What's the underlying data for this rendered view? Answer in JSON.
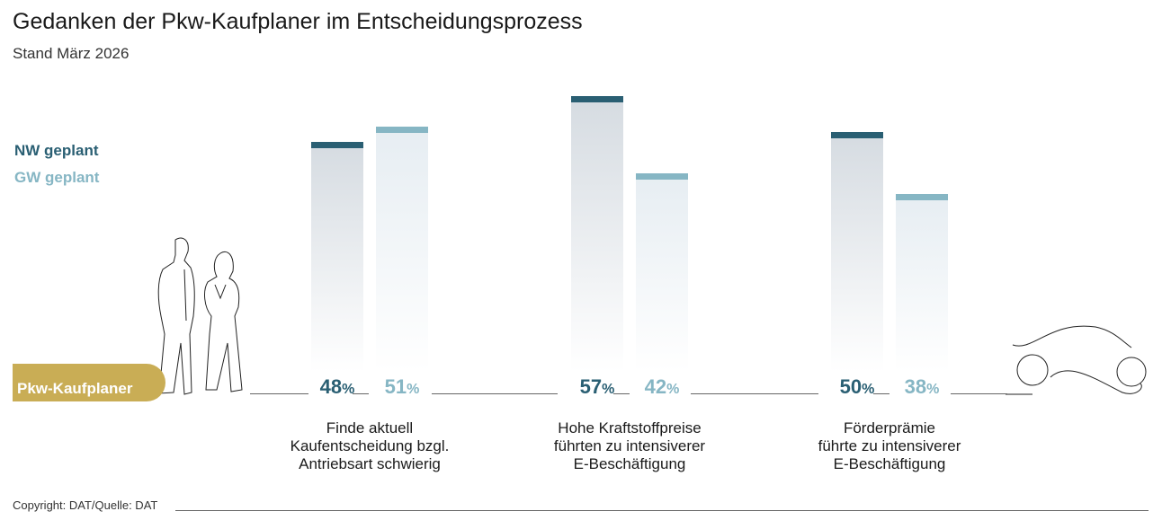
{
  "chart_data": {
    "type": "bar",
    "title": "Gedanken der Pkw-Kaufplaner im Entscheidungsprozess",
    "subtitle": "Stand März 2026",
    "categories": [
      "Finde aktuell Kaufentscheidung bzgl. Antriebsart schwierig",
      "Hohe Kraftstoffpreise führten zu intensiverer E-Beschäftigung",
      "Förderprämie führte zu intensiverer E-Beschäftigung"
    ],
    "category_lines": [
      [
        "Finde aktuell",
        "Kaufentscheidung bzgl.",
        "Antriebsart schwierig"
      ],
      [
        "Hohe Kraftstoffpreise",
        "führten zu intensiverer",
        "E-Beschäftigung"
      ],
      [
        "Förderprämie",
        "führte zu intensiverer",
        "E-Beschäftigung"
      ]
    ],
    "series": [
      {
        "name": "NW geplant",
        "values": [
          48,
          57,
          50
        ]
      },
      {
        "name": "GW geplant",
        "values": [
          51,
          42,
          38
        ]
      }
    ]
  },
  "legend": {
    "nw": "NW geplant",
    "gw": "GW geplant"
  },
  "nw_values": [
    48,
    57,
    50
  ],
  "gw_values": [
    51,
    42,
    38
  ],
  "pill": "Pkw-Kaufplaner",
  "copyright": "Copyright: DAT/Quelle: DAT",
  "unit": "%",
  "colors": {
    "nw": "#2a5f73",
    "gw": "#86b6c4",
    "gold": "#c9ad55"
  }
}
